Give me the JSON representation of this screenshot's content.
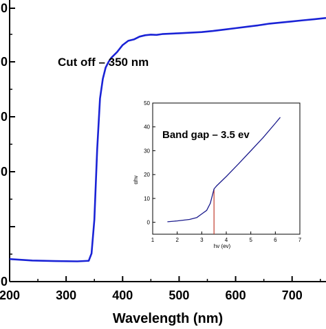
{
  "chart_data": [
    {
      "type": "line",
      "xlabel": "Wavelength (nm)",
      "ylabel": "",
      "xlim": [
        200,
        760
      ],
      "ylim": [
        0,
        100
      ],
      "x_ticks": [
        200,
        300,
        400,
        500,
        600,
        700
      ],
      "y_ticks_visible_labels": [
        "0",
        "",
        "0",
        "0",
        "0",
        "0"
      ],
      "grid": false,
      "legend": "none",
      "annotation": "Cut off – 350 nm",
      "series": [
        {
          "color": "#1a23d6",
          "x": [
            200,
            240,
            280,
            320,
            340,
            345,
            350,
            355,
            360,
            365,
            370,
            375,
            380,
            390,
            400,
            410,
            420,
            430,
            440,
            450,
            460,
            470,
            480,
            500,
            520,
            540,
            560,
            580,
            600,
            620,
            640,
            660,
            680,
            700,
            720,
            740,
            760
          ],
          "y": [
            8,
            7.5,
            7.3,
            7.2,
            7.4,
            10,
            22,
            47,
            65,
            72,
            76,
            78,
            79.5,
            81.5,
            84,
            85.5,
            86,
            87,
            87.5,
            87.7,
            87.6,
            87.9,
            88.0,
            88.2,
            88.4,
            88.6,
            89.0,
            89.5,
            90.0,
            90.5,
            91.0,
            91.6,
            92.0,
            92.4,
            92.8,
            93.2,
            93.6
          ]
        }
      ]
    },
    {
      "type": "line",
      "xlabel": "hv (ev)",
      "ylabel": "αhv",
      "xlim": [
        1,
        7
      ],
      "ylim": [
        -5,
        50
      ],
      "x_ticks": [
        1,
        2,
        3,
        4,
        5,
        6,
        7
      ],
      "y_ticks": [
        0,
        10,
        20,
        30,
        40,
        50
      ],
      "grid": false,
      "legend": "none",
      "annotation": "Band gap – 3.5 ev",
      "series": [
        {
          "color": "#1a1a8c",
          "x": [
            1.6,
            2.0,
            2.5,
            2.8,
            3.0,
            3.2,
            3.35,
            3.45,
            3.5,
            3.6,
            3.8,
            4.0,
            4.5,
            5.0,
            5.5,
            6.0,
            6.2
          ],
          "y": [
            0.2,
            0.6,
            1.2,
            2.0,
            3.5,
            5.0,
            8.0,
            12.0,
            14.0,
            15.2,
            17.2,
            19.2,
            24.5,
            30.0,
            35.5,
            41.5,
            44.0
          ]
        }
      ],
      "tangent_line": {
        "color": "#c0392b",
        "x": [
          3.5,
          3.5
        ],
        "y": [
          -5,
          14
        ]
      }
    }
  ]
}
